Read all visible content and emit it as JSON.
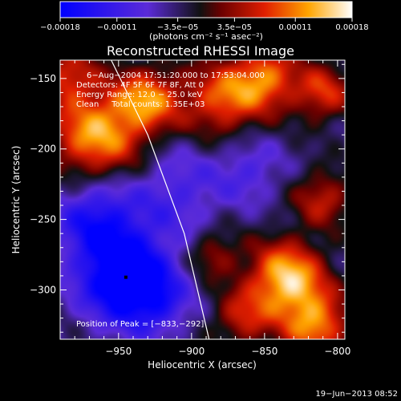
{
  "chart_data": {
    "type": "heatmap",
    "title": "Reconstructed RHESSI Image",
    "xlabel": "Heliocentric X (arcsec)",
    "ylabel": "Heliocentric Y (arcsec)",
    "xlim": [
      -990,
      -795
    ],
    "ylim": [
      -335,
      -137
    ],
    "x_ticks": [
      -950,
      -900,
      -850,
      -800
    ],
    "y_ticks": [
      -150,
      -200,
      -250,
      -300
    ],
    "x_tick_labels": [
      "−950",
      "−900",
      "−850",
      "−800"
    ],
    "y_tick_labels": [
      "−150",
      "−200",
      "−250",
      "−300"
    ],
    "colorbar": {
      "range": [
        -0.00018,
        0.00018
      ],
      "ticks": [
        -0.00018,
        -0.00011,
        -3.5e-05,
        3.5e-05,
        0.00011,
        0.00018
      ],
      "tick_labels": [
        "−0.00018",
        "−0.00011",
        "−3.5e−05",
        "3.5e−05",
        "0.00011",
        "0.00018"
      ],
      "unit_label": "(photons cm⁻² s⁻¹ asec⁻²)"
    },
    "annotations": [
      "6−Aug−2004 17:51:20.000 to 17:53:04.000",
      "Detectors: 4F 5F 6F 7F 8F, Att 0",
      "Energy Range: 12.0 − 25.0 keV",
      "Clean     Total counts: 1.35E+03"
    ],
    "peak_label": "Position of Peak = [−833,−292]",
    "marked_point": [
      -945,
      -291
    ],
    "limb_line": [
      [
        -955,
        -137
      ],
      [
        -930,
        -190
      ],
      [
        -905,
        -260
      ],
      [
        -888,
        -335
      ]
    ],
    "image_sources": [
      {
        "x": -965,
        "y": -190,
        "amp": 1.0,
        "r": 22
      },
      {
        "x": -930,
        "y": -165,
        "amp": 0.85,
        "r": 16
      },
      {
        "x": -985,
        "y": -148,
        "amp": 0.6,
        "r": 14
      },
      {
        "x": -880,
        "y": -165,
        "amp": 0.75,
        "r": 18
      },
      {
        "x": -850,
        "y": -150,
        "amp": 0.85,
        "r": 16
      },
      {
        "x": -810,
        "y": -160,
        "amp": 0.65,
        "r": 14
      },
      {
        "x": -810,
        "y": -235,
        "amp": 0.55,
        "r": 14
      },
      {
        "x": -835,
        "y": -292,
        "amp": 1.15,
        "r": 18
      },
      {
        "x": -815,
        "y": -325,
        "amp": 0.9,
        "r": 16
      },
      {
        "x": -865,
        "y": -320,
        "amp": 0.55,
        "r": 14
      },
      {
        "x": -885,
        "y": -275,
        "amp": 0.45,
        "r": 12
      },
      {
        "x": -945,
        "y": -291,
        "amp": -1.2,
        "r": 22
      },
      {
        "x": -965,
        "y": -250,
        "amp": -0.7,
        "r": 20
      },
      {
        "x": -910,
        "y": -230,
        "amp": -0.4,
        "r": 22
      },
      {
        "x": -860,
        "y": -215,
        "amp": -0.35,
        "r": 16
      },
      {
        "x": -925,
        "y": -310,
        "amp": -0.4,
        "r": 16
      }
    ]
  },
  "footer": {
    "date": "19−Jun−2013 08:52"
  }
}
